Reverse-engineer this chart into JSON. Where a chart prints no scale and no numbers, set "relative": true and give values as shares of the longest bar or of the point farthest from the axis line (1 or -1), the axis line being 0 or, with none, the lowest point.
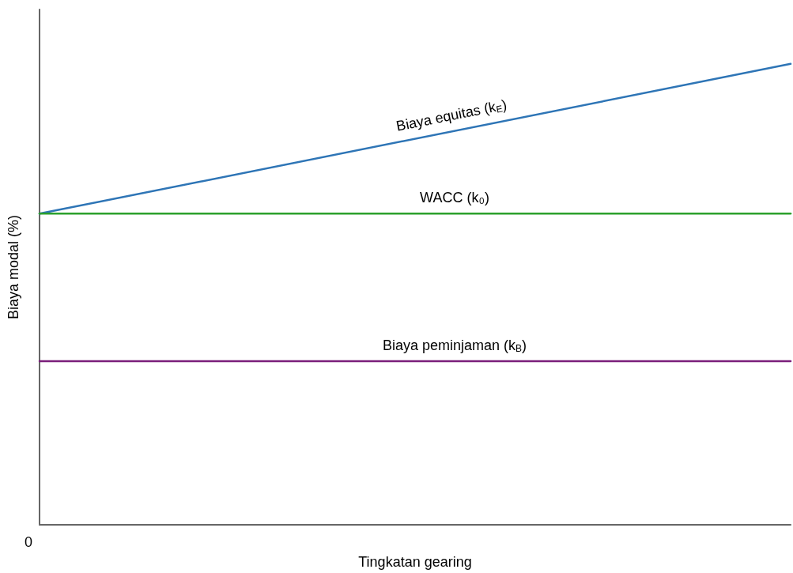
{
  "chart_data": {
    "type": "line",
    "relative": true,
    "xlabel": "Tingkatan gearing",
    "ylabel": "Biaya modal (%)",
    "categories": [
      null,
      null
    ],
    "marker": "none",
    "annotations": [
      "0"
    ],
    "series": [
      {
        "name": "Biaya equitas (k$_{E}$)",
        "color": "#2e75b6",
        "values": [
          0.675,
          1
        ]
      },
      {
        "name": "WACC (k₀)",
        "color": "#2ca02c",
        "values": [
          0.675,
          0.675
        ]
      },
      {
        "name": "Biaya peminjaman (k$_{B}$)",
        "color": "#7b1f7b",
        "values": [
          0.355,
          0.355
        ]
      }
    ]
  }
}
